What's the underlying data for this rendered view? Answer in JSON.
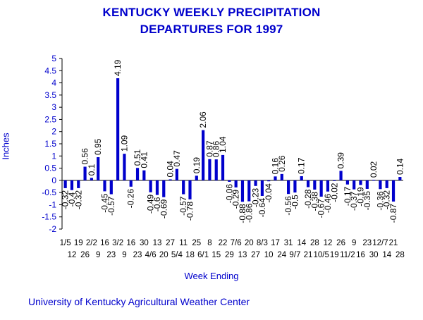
{
  "title_line1": "KENTUCKY WEEKLY PRECIPITATION",
  "title_line2": "DEPARTURES FOR 1997",
  "footer": "University of Kentucky  Agricultural Weather Center",
  "colors": {
    "bar": "#0000cc",
    "text": "#0000cc",
    "axis": "#000000",
    "label": "#000000"
  },
  "chart_data": {
    "type": "bar",
    "title": "KENTUCKY WEEKLY PRECIPITATION DEPARTURES FOR 1997",
    "xlabel": "Week Ending",
    "ylabel": "Inches",
    "ylim": [
      -2,
      5
    ],
    "yticks": [
      "-2",
      "-1.5",
      "-1",
      "-0.5",
      "0",
      "0.5",
      "1",
      "1.5",
      "2",
      "2.5",
      "3",
      "3.5",
      "4",
      "4.5",
      "5"
    ],
    "grid": false,
    "categories": [
      "1/5",
      "12",
      "19",
      "26",
      "2/2",
      "9",
      "16",
      "23",
      "3/2",
      "9",
      "16",
      "23",
      "30",
      "4/6",
      "13",
      "20",
      "27",
      "5/4",
      "11",
      "18",
      "25",
      "6/1",
      "8",
      "15",
      "22",
      "29",
      "7/6",
      "13",
      "20",
      "27",
      "8/3",
      "10",
      "17",
      "24",
      "31",
      "9/7",
      "14",
      "21",
      "28",
      "10/5",
      "12",
      "19",
      "26",
      "11/2",
      "9",
      "16",
      "23",
      "30",
      "12/7",
      "14",
      "21",
      "28"
    ],
    "values": [
      -0.32,
      -0.4,
      -0.32,
      0.56,
      0.1,
      0.95,
      -0.45,
      -0.57,
      4.19,
      1.09,
      -0.26,
      0.51,
      0.41,
      -0.49,
      -0.6,
      -0.69,
      0.04,
      0.47,
      -0.57,
      -0.78,
      0.19,
      2.06,
      0.87,
      0.86,
      1.04,
      -0.06,
      -0.29,
      -0.88,
      -0.86,
      -0.23,
      -0.64,
      -0.04,
      0.16,
      0.26,
      -0.56,
      -0.5,
      0.17,
      -0.28,
      -0.38,
      -0.67,
      -0.46,
      -0.02,
      0.39,
      -0.17,
      -0.37,
      -0.19,
      -0.35,
      0.02,
      -0.36,
      -0.32,
      -0.87,
      0.14
    ],
    "data_labels": [
      "-0.32",
      "-0.4",
      "-0.32",
      "0.56",
      "0.1",
      "0.95",
      "-0.45",
      "-0.57",
      "4.19",
      "1.09",
      "-0.26",
      "0.51",
      "0.41",
      "-0.49",
      "-0.6",
      "-0.69",
      "0.04",
      "0.47",
      "-0.57",
      "-0.78",
      "0.19",
      "2.06",
      "0.87",
      "0.86",
      "1.04",
      "-0.06",
      "-0.29",
      "-0.88",
      "-0.86",
      "-0.23",
      "-0.64",
      "-0.04",
      "0.16",
      "0.26",
      "-0.56",
      "-0.5",
      "0.17",
      "-0.28",
      "-0.38",
      "-0.67",
      "-0.46",
      "-0.02",
      "0.39",
      "-0.17",
      "-0.37",
      "-0.19",
      "-0.35",
      "0.02",
      "-0.36",
      "-0.32",
      "-0.87",
      "0.14"
    ]
  }
}
